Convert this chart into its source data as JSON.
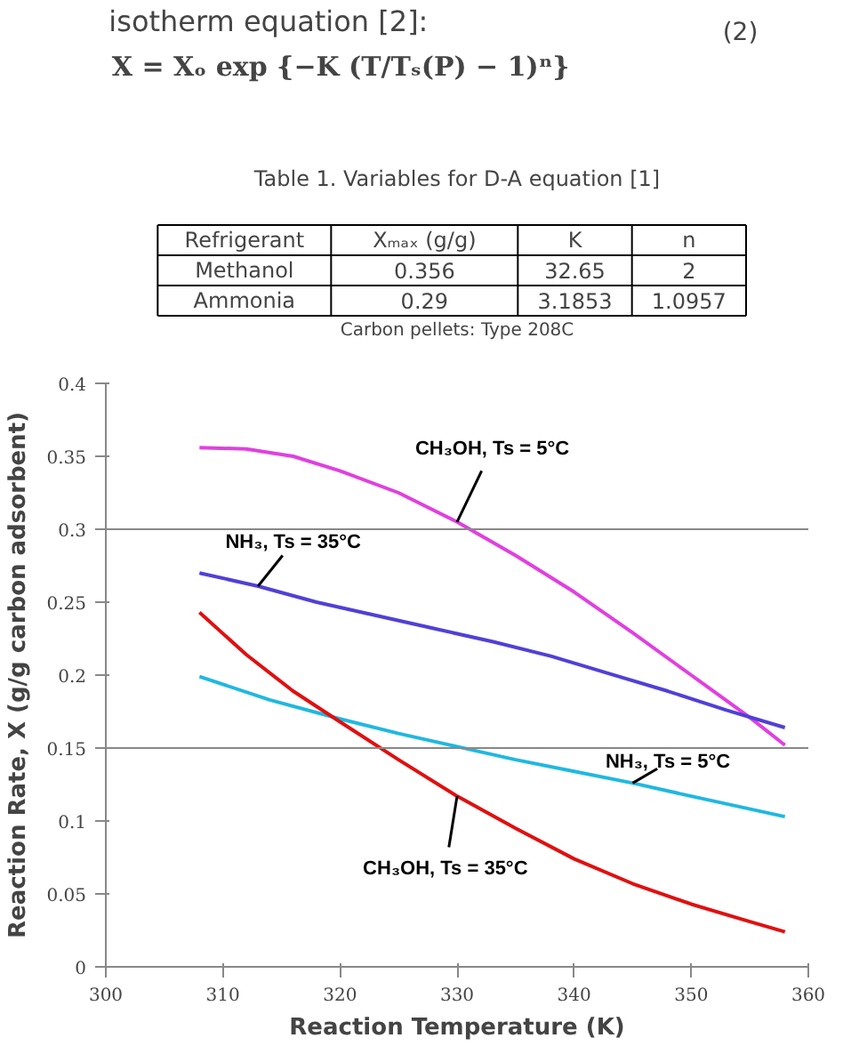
{
  "chart_data": [
    {
      "type": "other",
      "title": "Table 1. Variables for D-A equation [1]",
      "annotations": [
        "isotherm equation [2]:",
        "X = Xₒ exp {−K (T/Tₛ(P) − 1)ⁿ}",
        "(2)",
        "Carbon pellets: Type 208C"
      ],
      "categories": [
        "Refrigerant",
        "Xₘₐₓ (g/g)",
        "K",
        "n"
      ],
      "cell_labels": [
        [
          "Methanol",
          "0.356",
          "32.65",
          "2"
        ],
        [
          "Ammonia",
          "0.29",
          "3.1853",
          "1.0957"
        ]
      ]
    },
    {
      "type": "line",
      "xlabel": "Reaction Temperature (K)",
      "ylabel": "Reaction Rate, X (g/g carbon adsorbent)",
      "xlim": [
        300,
        360
      ],
      "xticks": [
        300,
        310,
        320,
        330,
        340,
        350,
        360
      ],
      "ylim": [
        0,
        0.4
      ],
      "yticks": [
        0,
        0.05,
        0.1,
        0.15,
        0.2,
        0.25,
        0.3,
        0.35,
        0.4
      ],
      "grid": false,
      "legend": false,
      "marker": "none",
      "line_style": "solid",
      "ref_lines": [
        {
          "axis": "y",
          "value": 0.15,
          "label": null,
          "color": "#888888"
        },
        {
          "axis": "y",
          "value": 0.3,
          "label": null,
          "color": "#888888"
        }
      ],
      "series": [
        {
          "name": "CH₃OH, Ts = 5°C",
          "color": "#e040e0",
          "x": [
            308,
            312,
            316,
            320,
            325,
            330,
            335,
            340,
            345,
            350,
            355,
            358
          ],
          "values": [
            0.356,
            0.355,
            0.35,
            0.34,
            0.325,
            0.305,
            0.282,
            0.257,
            0.229,
            0.2,
            0.171,
            0.152
          ]
        },
        {
          "name": "NH₃, Ts = 35°C",
          "color": "#5040d8",
          "x": [
            308,
            313,
            318,
            323,
            328,
            333,
            338,
            343,
            348,
            353,
            358
          ],
          "values": [
            0.27,
            0.261,
            0.25,
            0.241,
            0.232,
            0.223,
            0.213,
            0.201,
            0.189,
            0.176,
            0.164
          ]
        },
        {
          "name": "NH₃, Ts = 5°C",
          "color": "#20b8e0",
          "x": [
            308,
            314,
            320,
            325,
            330,
            335,
            340,
            345,
            350,
            354,
            358
          ],
          "values": [
            0.199,
            0.183,
            0.17,
            0.16,
            0.151,
            0.142,
            0.134,
            0.126,
            0.117,
            0.11,
            0.103
          ]
        },
        {
          "name": "CH₃OH, Ts = 35°C",
          "color": "#e01010",
          "x": [
            308,
            312,
            316,
            320,
            325,
            330,
            335,
            340,
            345,
            350,
            355,
            358
          ],
          "values": [
            0.243,
            0.214,
            0.189,
            0.168,
            0.142,
            0.117,
            0.095,
            0.074,
            0.057,
            0.043,
            0.031,
            0.024
          ]
        }
      ]
    }
  ]
}
